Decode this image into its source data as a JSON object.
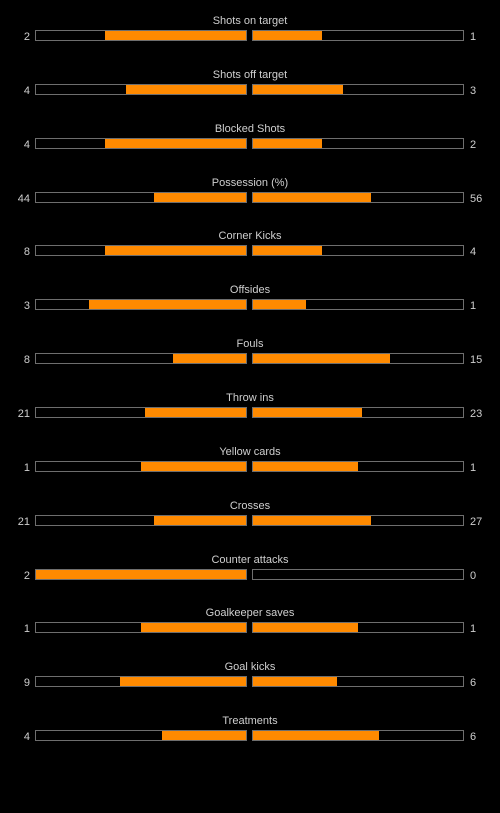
{
  "colors": {
    "background": "#000000",
    "fill": "#ff8a00",
    "border": "#6e6e6e",
    "text": "#cfcfcf"
  },
  "stats": [
    {
      "label": "Shots on target",
      "home": "2",
      "away": "1",
      "home_fill": 0.67,
      "away_fill": 0.33
    },
    {
      "label": "Shots off target",
      "home": "4",
      "away": "3",
      "home_fill": 0.57,
      "away_fill": 0.43
    },
    {
      "label": "Blocked Shots",
      "home": "4",
      "away": "2",
      "home_fill": 0.67,
      "away_fill": 0.33
    },
    {
      "label": "Possession (%)",
      "home": "44",
      "away": "56",
      "home_fill": 0.44,
      "away_fill": 0.56
    },
    {
      "label": "Corner Kicks",
      "home": "8",
      "away": "4",
      "home_fill": 0.67,
      "away_fill": 0.33
    },
    {
      "label": "Offsides",
      "home": "3",
      "away": "1",
      "home_fill": 0.75,
      "away_fill": 0.25
    },
    {
      "label": "Fouls",
      "home": "8",
      "away": "15",
      "home_fill": 0.35,
      "away_fill": 0.65
    },
    {
      "label": "Throw ins",
      "home": "21",
      "away": "23",
      "home_fill": 0.48,
      "away_fill": 0.52
    },
    {
      "label": "Yellow cards",
      "home": "1",
      "away": "1",
      "home_fill": 0.5,
      "away_fill": 0.5
    },
    {
      "label": "Crosses",
      "home": "21",
      "away": "27",
      "home_fill": 0.44,
      "away_fill": 0.56
    },
    {
      "label": "Counter attacks",
      "home": "2",
      "away": "0",
      "home_fill": 1.0,
      "away_fill": 0.0
    },
    {
      "label": "Goalkeeper saves",
      "home": "1",
      "away": "1",
      "home_fill": 0.5,
      "away_fill": 0.5
    },
    {
      "label": "Goal kicks",
      "home": "9",
      "away": "6",
      "home_fill": 0.6,
      "away_fill": 0.4
    },
    {
      "label": "Treatments",
      "home": "4",
      "away": "6",
      "home_fill": 0.4,
      "away_fill": 0.6
    }
  ]
}
